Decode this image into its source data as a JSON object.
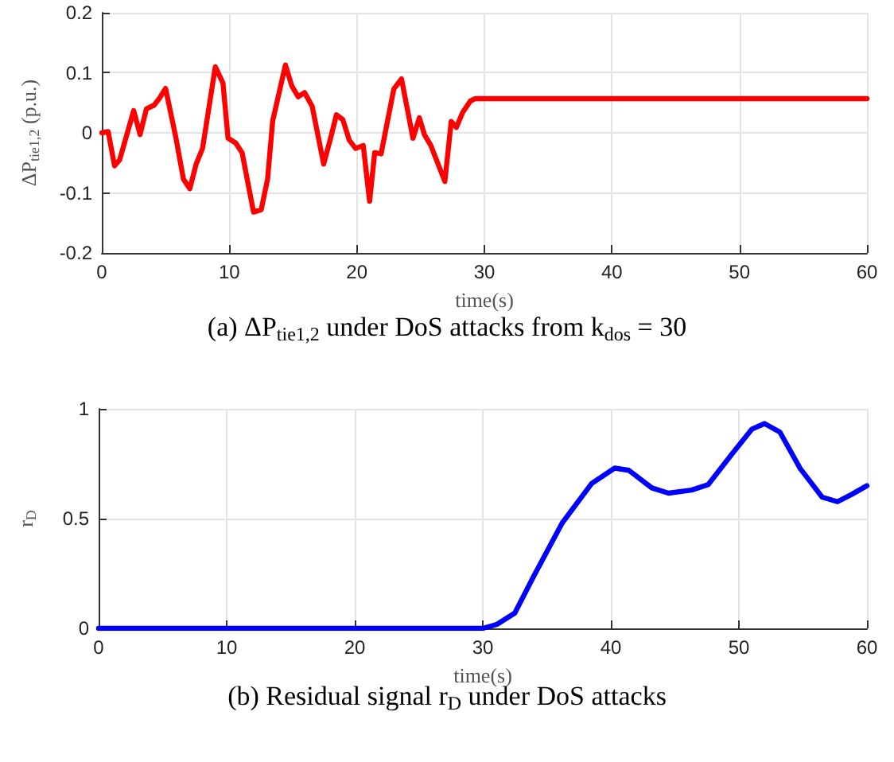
{
  "chart_data": [
    {
      "type": "line",
      "title": "(a) ΔP$_{tie1,2}$ under DoS attacks from k$_{dos}$ = 30",
      "xlabel": "time(s)",
      "ylabel": "ΔP$_{tie1,2}$ (p.u.)",
      "x": [
        0,
        0.5,
        1.0,
        1.4,
        2.5,
        3.0,
        3.5,
        4.1,
        4.5,
        5.0,
        5.8,
        6.4,
        6.9,
        7.4,
        7.9,
        8.9,
        9.5,
        9.9,
        10.5,
        11.0,
        11.9,
        12.5,
        13.0,
        13.4,
        14.4,
        14.9,
        15.4,
        15.9,
        16.5,
        17.4,
        17.9,
        18.4,
        18.9,
        19.4,
        19.9,
        20.5,
        21.0,
        21.4,
        21.9,
        22.9,
        23.5,
        24.4,
        24.9,
        25.3,
        25.8,
        26.9,
        27.4,
        27.8,
        28.3,
        28.9,
        29.3,
        60
      ],
      "series": [
        {
          "color": "#ff0000",
          "values": [
            0,
            0.002,
            -0.055,
            -0.045,
            0.037,
            -0.003,
            0.04,
            0.046,
            0.057,
            0.074,
            -0.007,
            -0.077,
            -0.093,
            -0.052,
            -0.026,
            0.11,
            0.083,
            -0.009,
            -0.017,
            -0.033,
            -0.132,
            -0.128,
            -0.077,
            0.02,
            0.113,
            0.078,
            0.06,
            0.067,
            0.044,
            -0.052,
            -0.012,
            0.03,
            0.022,
            -0.012,
            -0.026,
            -0.021,
            -0.114,
            -0.033,
            -0.035,
            0.073,
            0.09,
            -0.009,
            0.025,
            -0.003,
            -0.021,
            -0.081,
            0.019,
            0.009,
            0.034,
            0.053,
            0.057,
            0.057
          ]
        }
      ],
      "xlim": [
        0,
        60
      ],
      "xticks": [
        0,
        10,
        20,
        30,
        40,
        50,
        60
      ],
      "ylim": [
        -0.2,
        0.2
      ],
      "yticks": [
        -0.2,
        -0.1,
        0,
        0.1,
        0.2
      ],
      "grid": true,
      "marker": "none",
      "line_style": "solid"
    },
    {
      "type": "line",
      "title": "(b) Residual signal r$_{D}$ under DoS attacks",
      "xlabel": "time(s)",
      "ylabel": "r$_{D}$",
      "x": [
        0,
        30,
        31.1,
        32.5,
        34,
        36.2,
        38.5,
        40.3,
        41.4,
        43.2,
        44.5,
        46.3,
        47.6,
        49.4,
        51,
        52,
        53.2,
        54.8,
        56.5,
        57.7,
        58.8,
        60
      ],
      "series": [
        {
          "color": "#0000ff",
          "values": [
            0,
            0,
            0.018,
            0.07,
            0.24,
            0.48,
            0.66,
            0.73,
            0.72,
            0.64,
            0.616,
            0.63,
            0.655,
            0.79,
            0.907,
            0.933,
            0.894,
            0.727,
            0.598,
            0.577,
            0.61,
            0.65
          ]
        }
      ],
      "xlim": [
        0,
        60
      ],
      "xticks": [
        0,
        10,
        20,
        30,
        40,
        50,
        60
      ],
      "ylim": [
        0,
        1
      ],
      "yticks": [
        0,
        0.5,
        1
      ],
      "grid": true,
      "marker": "none",
      "line_style": "solid"
    }
  ]
}
